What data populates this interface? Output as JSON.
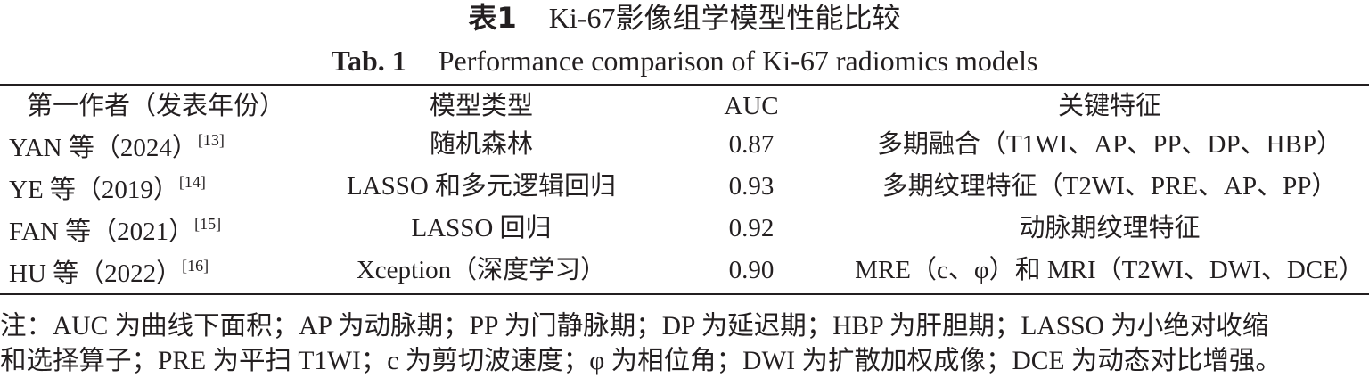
{
  "title_cn": {
    "label": "表1",
    "text": "Ki-67影像组学模型性能比较"
  },
  "title_en": {
    "label": "Tab. 1",
    "text": "Performance comparison of Ki-67 radiomics models"
  },
  "table": {
    "header": [
      "第一作者（发表年份）",
      "模型类型",
      "AUC",
      "关键特征"
    ],
    "rows": [
      {
        "author": "YAN 等（2024）",
        "ref": "[13]",
        "model": "随机森林",
        "auc": "0.87",
        "feature": "多期融合（T1WI、AP、PP、DP、HBP）"
      },
      {
        "author": "YE 等（2019）",
        "ref": "[14]",
        "model": "LASSO 和多元逻辑回归",
        "auc": "0.93",
        "feature": "多期纹理特征（T2WI、PRE、AP、PP）"
      },
      {
        "author": "FAN 等（2021）",
        "ref": "[15]",
        "model": "LASSO 回归",
        "auc": "0.92",
        "feature": "动脉期纹理特征"
      },
      {
        "author": "HU 等（2022）",
        "ref": "[16]",
        "model": "Xception（深度学习）",
        "auc": "0.90",
        "feature": "MRE（c、φ）和 MRI（T2WI、DWI、DCE）"
      }
    ]
  },
  "note": {
    "lines": [
      "注：AUC 为曲线下面积；AP 为动脉期；PP 为门静脉期；DP 为延迟期；HBP 为肝胆期；LASSO 为小绝对收缩",
      "和选择算子；PRE 为平扫 T1WI；c 为剪切波速度；φ 为相位角；DWI 为扩散加权成像；DCE 为动态对比增强。"
    ]
  }
}
